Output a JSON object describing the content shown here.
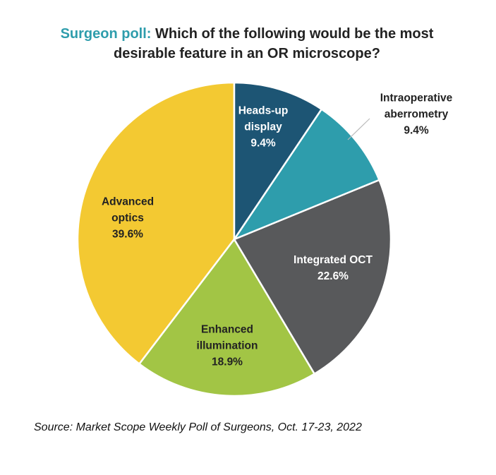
{
  "chart_data": {
    "type": "pie",
    "title_lead": "Surgeon poll:",
    "title": "Which of the following would be the most desirable feature in an OR microscope?",
    "categories": [
      "Heads-up display",
      "Intraoperative aberrometry",
      "Integrated OCT",
      "Enhanced illumination",
      "Advanced optics"
    ],
    "values": [
      9.4,
      9.4,
      22.6,
      18.9,
      39.6
    ],
    "value_labels": [
      "9.4%",
      "9.4%",
      "22.6%",
      "18.9%",
      "39.6%"
    ],
    "colors": [
      "#1d5574",
      "#2e9dac",
      "#58595b",
      "#a2c545",
      "#f3c932"
    ],
    "source": "Source: Market Scope Weekly Poll of Surgeons, Oct. 17-23, 2022"
  }
}
